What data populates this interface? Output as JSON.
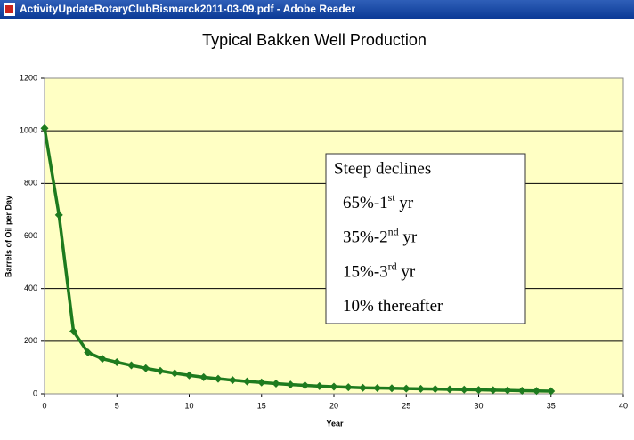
{
  "window_title": "ActivityUpdateRotaryClubBismarck2011-03-09.pdf - Adobe Reader",
  "chart_data": {
    "type": "line",
    "title": "Typical Bakken Well Production",
    "xlabel": "Year",
    "ylabel": "Barrels of Oil per Day",
    "x": [
      0,
      1,
      2,
      3,
      4,
      5,
      6,
      7,
      8,
      9,
      10,
      11,
      12,
      13,
      14,
      15,
      16,
      17,
      18,
      19,
      20,
      21,
      22,
      23,
      24,
      25,
      26,
      27,
      28,
      29,
      30,
      31,
      32,
      33,
      34,
      35
    ],
    "series": [
      {
        "color": "#1e7b1e",
        "values": [
          1010,
          680,
          238,
          157,
          133,
          120,
          108,
          97,
          87,
          78,
          70,
          63,
          57,
          52,
          47,
          43,
          39,
          35,
          32,
          29,
          27,
          25,
          23,
          22,
          21,
          20,
          19,
          18,
          17,
          16,
          15,
          14,
          13,
          12,
          11,
          10
        ]
      }
    ],
    "xlim": [
      0,
      40
    ],
    "xticks": [
      0,
      5,
      10,
      15,
      20,
      25,
      30,
      35,
      40
    ],
    "ylim": [
      0,
      1200
    ],
    "yticks": [
      0,
      200,
      400,
      600,
      800,
      1000,
      1200
    ],
    "grid": true,
    "annotation": {
      "heading": "Steep declines",
      "lines": [
        [
          "65%-1",
          "st",
          " yr"
        ],
        [
          "35%-2",
          "nd",
          " yr"
        ],
        [
          "15%-3",
          "rd",
          " yr"
        ],
        [
          "10% thereafter"
        ]
      ]
    }
  }
}
